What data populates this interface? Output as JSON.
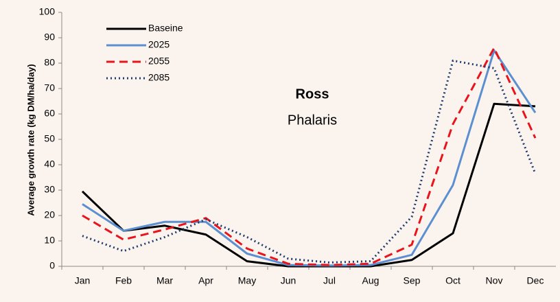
{
  "chart_data": {
    "type": "line",
    "annotations": [
      "Ross",
      "Phalaris"
    ],
    "y_label": "Average growth rate (kg DM/ha/day)",
    "categories": [
      "Jan",
      "Feb",
      "Mar",
      "Apr",
      "May",
      "Jun",
      "Jul",
      "Aug",
      "Sep",
      "Oct",
      "Nov",
      "Dec"
    ],
    "series": [
      {
        "name": "Baseine",
        "color": "#000000",
        "dash": "solid",
        "values": [
          29.5,
          14,
          16,
          12.5,
          2,
          0,
          0,
          0,
          2.5,
          13,
          64,
          63
        ]
      },
      {
        "name": "2025",
        "color": "#5b8fd0",
        "dash": "solid",
        "values": [
          24.5,
          14,
          17.5,
          17.5,
          5,
          0.5,
          0.3,
          0.5,
          4.5,
          32,
          85,
          60.5
        ]
      },
      {
        "name": "2055",
        "color": "#e8141b",
        "dash": "dashed",
        "values": [
          20,
          10.5,
          14.5,
          19,
          7,
          1,
          0.5,
          1,
          8.5,
          56,
          86,
          50.5
        ]
      },
      {
        "name": "2085",
        "color": "#1f3c6e",
        "dash": "dotted",
        "values": [
          12,
          6,
          11.5,
          18.5,
          11.5,
          3,
          1.5,
          2,
          19.5,
          81,
          78,
          36.5
        ]
      }
    ],
    "ylim": [
      0,
      100
    ],
    "yticks": [
      0,
      10,
      20,
      30,
      40,
      50,
      60,
      70,
      80,
      90,
      100
    ]
  }
}
